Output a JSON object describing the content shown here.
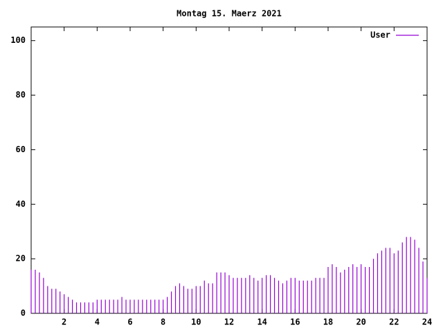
{
  "chart_data": {
    "type": "impulse",
    "title": "Montag 15. Maerz 2021",
    "x": [
      0,
      0.25,
      0.5,
      0.75,
      1,
      1.25,
      1.5,
      1.75,
      2,
      2.25,
      2.5,
      2.75,
      3,
      3.25,
      3.5,
      3.75,
      4,
      4.25,
      4.5,
      4.75,
      5,
      5.25,
      5.5,
      5.75,
      6,
      6.25,
      6.5,
      6.75,
      7,
      7.25,
      7.5,
      7.75,
      8,
      8.25,
      8.5,
      8.75,
      9,
      9.25,
      9.5,
      9.75,
      10,
      10.25,
      10.5,
      10.75,
      11,
      11.25,
      11.5,
      11.75,
      12,
      12.25,
      12.5,
      12.75,
      13,
      13.25,
      13.5,
      13.75,
      14,
      14.25,
      14.5,
      14.75,
      15,
      15.25,
      15.5,
      15.75,
      16,
      16.25,
      16.5,
      16.75,
      17,
      17.25,
      17.5,
      17.75,
      18,
      18.25,
      18.5,
      18.75,
      19,
      19.25,
      19.5,
      19.75,
      20,
      20.25,
      20.5,
      20.75,
      21,
      21.25,
      21.5,
      21.75,
      22,
      22.25,
      22.5,
      22.75,
      23,
      23.25,
      23.5,
      23.75,
      24
    ],
    "series": [
      {
        "name": "User",
        "color": "#9400d3",
        "values": [
          16,
          16,
          15,
          13,
          10,
          9,
          9,
          8,
          7,
          6,
          5,
          4,
          4,
          4,
          4,
          4,
          5,
          5,
          5,
          5,
          5,
          5,
          6,
          5,
          5,
          5,
          5,
          5,
          5,
          5,
          5,
          5,
          5,
          6,
          8,
          10,
          11,
          10,
          9,
          9,
          10,
          10,
          12,
          11,
          11,
          15,
          15,
          15,
          14,
          13,
          13,
          13,
          13,
          14,
          13,
          12,
          13,
          14,
          14,
          13,
          12,
          11,
          12,
          13,
          13,
          12,
          12,
          12,
          12,
          13,
          13,
          13,
          17,
          18,
          17,
          15,
          16,
          17,
          18,
          17,
          18,
          17,
          17,
          20,
          22,
          23,
          24,
          24,
          22,
          23,
          26,
          28,
          28,
          27,
          24,
          19,
          13
        ]
      }
    ],
    "xlim": [
      0,
      24
    ],
    "xticks": [
      2,
      4,
      6,
      8,
      10,
      12,
      14,
      16,
      18,
      20,
      22,
      24
    ],
    "ylim": [
      0,
      105
    ],
    "yticks": [
      0,
      20,
      40,
      60,
      80,
      100
    ],
    "legend": "top-right"
  }
}
